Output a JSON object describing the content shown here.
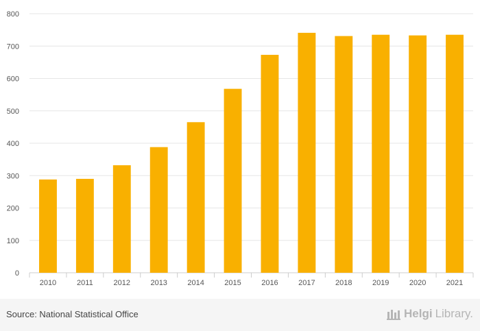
{
  "chart_data": {
    "type": "bar",
    "categories": [
      "2010",
      "2011",
      "2012",
      "2013",
      "2014",
      "2015",
      "2016",
      "2017",
      "2018",
      "2019",
      "2020",
      "2021"
    ],
    "values": [
      288,
      290,
      332,
      388,
      465,
      568,
      673,
      741,
      731,
      735,
      733,
      735
    ],
    "title": "",
    "xlabel": "",
    "ylabel": "",
    "ylim": [
      0,
      800
    ],
    "yticks": [
      0,
      100,
      200,
      300,
      400,
      500,
      600,
      700,
      800
    ],
    "grid": true,
    "bar_color": "#f9b000"
  },
  "footer": {
    "source": "Source: National Statistical Office",
    "brand_part1": "Helgi",
    "brand_part2": "Library."
  },
  "colors": {
    "grid": "#e6e6e6",
    "text": "#555555",
    "footer_bg": "#f5f5f5",
    "brand": "#b5b5b5"
  }
}
